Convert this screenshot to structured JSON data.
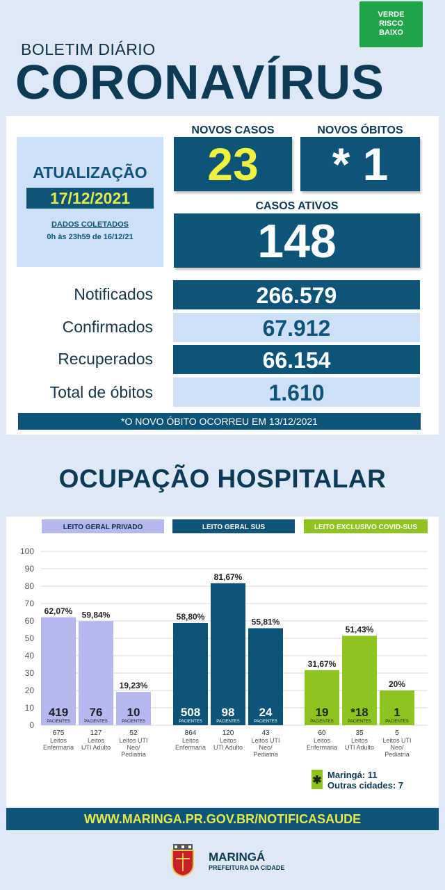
{
  "risk": {
    "line1": "VERDE",
    "line2": "RISCO",
    "line3": "BAIXO",
    "color": "#1fa548"
  },
  "header": {
    "subtitle": "BOLETIM DIÁRIO",
    "title": "CORONAVÍRUS"
  },
  "update": {
    "title": "ATUALIZAÇÃO",
    "date": "17/12/2021",
    "collected_label": "DADOS COLETADOS",
    "collected_range": "0h às 23h59 de 16/12/21"
  },
  "new_cases": {
    "label": "NOVOS CASOS",
    "value": "23"
  },
  "new_deaths": {
    "label": "NOVOS ÓBITOS",
    "value": "* 1"
  },
  "active_cases": {
    "label": "CASOS ATIVOS",
    "value": "148"
  },
  "stats": [
    {
      "label": "Notificados",
      "value": "266.579"
    },
    {
      "label": "Confirmados",
      "value": "67.912"
    },
    {
      "label": "Recuperados",
      "value": "66.154"
    },
    {
      "label": "Total de óbitos",
      "value": "1.610"
    }
  ],
  "note": "*O NOVO ÓBITO OCORREU EM 13/12/2021",
  "occupancy_title": "OCUPAÇÃO HOSPITALAR",
  "footer_url": "WWW.MARINGA.PR.GOV.BR/NOTIFICASAUDE",
  "brand": {
    "name": "MARINGÁ",
    "sub": "PREFEITURA DA CIDADE"
  },
  "colors": {
    "navy": "#0c5478",
    "light": "#cfe0f6",
    "yellow": "#e7e94a",
    "lavender": "#b5b9ef",
    "lime": "#8fc31f"
  },
  "legend": {
    "line1": "Maringá: 11",
    "line2": "Outras cidades: 7"
  },
  "chart_data": [
    {
      "type": "bar",
      "title": "LEITO GERAL PRIVADO",
      "ylim": [
        0,
        100
      ],
      "yticks": [
        "100",
        "90",
        "80",
        "70",
        "60",
        "50",
        "40",
        "30",
        "20",
        "10",
        "0"
      ],
      "bars": [
        {
          "percent": 62.07,
          "percent_label": "62,07%",
          "patients": "419",
          "patients_unit": "PACIENTES",
          "beds": "675",
          "bed_type": "Leitos Enfermaria"
        },
        {
          "percent": 59.84,
          "percent_label": "59,84%",
          "patients": "76",
          "patients_unit": "PACIENTES",
          "beds": "127",
          "bed_type": "Leitos UTI Adulto"
        },
        {
          "percent": 19.23,
          "percent_label": "19,23%",
          "patients": "10",
          "patients_unit": "PACIENTES",
          "beds": "52",
          "bed_type": "Leitos UTI Neo/ Pediatria"
        }
      ]
    },
    {
      "type": "bar",
      "title": "LEITO GERAL SUS",
      "ylim": [
        0,
        100
      ],
      "bars": [
        {
          "percent": 58.8,
          "percent_label": "58,80%",
          "patients": "508",
          "patients_unit": "PACIENTES",
          "beds": "864",
          "bed_type": "Leitos Enfermaria"
        },
        {
          "percent": 81.67,
          "percent_label": "81,67%",
          "patients": "98",
          "patients_unit": "PACIENTES",
          "beds": "120",
          "bed_type": "Leitos UTI Adulto"
        },
        {
          "percent": 55.81,
          "percent_label": "55,81%",
          "patients": "24",
          "patients_unit": "PACIENTES",
          "beds": "43",
          "bed_type": "Leitos UTI Neo/ Pediatria"
        }
      ]
    },
    {
      "type": "bar",
      "title": "LEITO EXCLUSIVO COVID-SUS",
      "ylim": [
        0,
        100
      ],
      "bars": [
        {
          "percent": 31.67,
          "percent_label": "31,67%",
          "patients": "19",
          "patients_unit": "PACIENTES",
          "beds": "60",
          "bed_type": "Leitos Enfermaria"
        },
        {
          "percent": 51.43,
          "percent_label": "51,43%",
          "patients": "*18",
          "patients_unit": "PACIENTES",
          "beds": "35",
          "bed_type": "Leitos UTI Adulto"
        },
        {
          "percent": 20,
          "percent_label": "20%",
          "patients": "1",
          "patients_unit": "PACIENTES",
          "beds": "5",
          "bed_type": "Leitos UTI Neo/ Pediatria"
        }
      ]
    }
  ]
}
